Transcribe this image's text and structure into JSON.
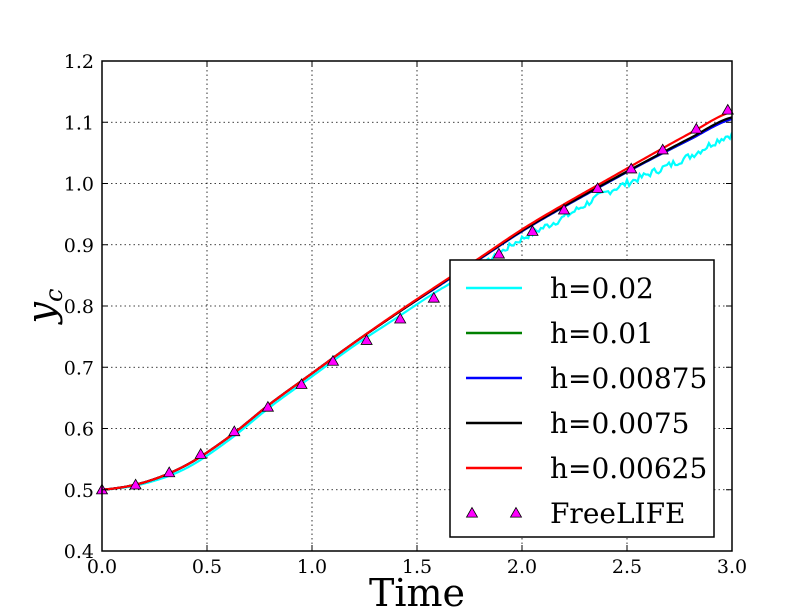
{
  "chart_data": {
    "type": "line",
    "xlabel": "Time",
    "ylabel": "y_c",
    "xlim": [
      0.0,
      3.0
    ],
    "ylim": [
      0.4,
      1.2
    ],
    "xticks": [
      "0.0",
      "0.5",
      "1.0",
      "1.5",
      "2.0",
      "2.5",
      "3.0"
    ],
    "yticks": [
      "0.4",
      "0.5",
      "0.6",
      "0.7",
      "0.8",
      "0.9",
      "1.0",
      "1.1",
      "1.2"
    ],
    "grid": true,
    "legend_position": "lower-right",
    "series": [
      {
        "name": "h=0.02",
        "color": "#00ffff",
        "style": "line",
        "noisy": true,
        "x": [
          0.0,
          0.2,
          0.4,
          0.6,
          0.8,
          1.0,
          1.2,
          1.4,
          1.6,
          1.8,
          2.0,
          2.2,
          2.4,
          2.6,
          2.8,
          3.0
        ],
        "y": [
          0.5,
          0.51,
          0.535,
          0.58,
          0.635,
          0.685,
          0.735,
          0.78,
          0.825,
          0.865,
          0.91,
          0.945,
          0.985,
          1.015,
          1.045,
          1.08
        ]
      },
      {
        "name": "h=0.01",
        "color": "#008000",
        "style": "line",
        "noisy": false,
        "x": [
          0.0,
          0.2,
          0.4,
          0.6,
          0.8,
          1.0,
          1.2,
          1.4,
          1.6,
          1.8,
          2.0,
          2.2,
          2.4,
          2.6,
          2.8,
          3.0
        ],
        "y": [
          0.5,
          0.512,
          0.54,
          0.585,
          0.64,
          0.69,
          0.74,
          0.787,
          0.832,
          0.877,
          0.922,
          0.962,
          1.0,
          1.037,
          1.072,
          1.107
        ]
      },
      {
        "name": "h=0.00875",
        "color": "#0000ff",
        "style": "line",
        "noisy": false,
        "x": [
          0.0,
          0.2,
          0.4,
          0.6,
          0.8,
          1.0,
          1.2,
          1.4,
          1.6,
          1.8,
          2.0,
          2.2,
          2.4,
          2.6,
          2.8,
          3.0
        ],
        "y": [
          0.5,
          0.512,
          0.54,
          0.585,
          0.64,
          0.69,
          0.74,
          0.787,
          0.832,
          0.877,
          0.922,
          0.962,
          1.0,
          1.037,
          1.072,
          1.105
        ]
      },
      {
        "name": "h=0.0075",
        "color": "#000000",
        "style": "line",
        "noisy": false,
        "x": [
          0.0,
          0.2,
          0.4,
          0.6,
          0.8,
          1.0,
          1.2,
          1.4,
          1.6,
          1.8,
          2.0,
          2.2,
          2.4,
          2.6,
          2.8,
          3.0
        ],
        "y": [
          0.5,
          0.512,
          0.54,
          0.585,
          0.64,
          0.69,
          0.74,
          0.787,
          0.833,
          0.878,
          0.923,
          0.963,
          1.001,
          1.038,
          1.074,
          1.108
        ]
      },
      {
        "name": "h=0.00625",
        "color": "#ff0000",
        "style": "line",
        "noisy": false,
        "x": [
          0.0,
          0.2,
          0.4,
          0.6,
          0.8,
          1.0,
          1.2,
          1.4,
          1.6,
          1.8,
          2.0,
          2.2,
          2.4,
          2.6,
          2.8,
          3.0
        ],
        "y": [
          0.5,
          0.512,
          0.54,
          0.585,
          0.64,
          0.69,
          0.74,
          0.788,
          0.834,
          0.879,
          0.925,
          0.966,
          1.005,
          1.044,
          1.082,
          1.117
        ]
      },
      {
        "name": "FreeLIFE",
        "color": "#ff00ff",
        "style": "marker",
        "marker": "triangle",
        "x": [
          0.0,
          0.16,
          0.32,
          0.47,
          0.63,
          0.79,
          0.95,
          1.1,
          1.26,
          1.42,
          1.58,
          1.73,
          1.89,
          2.05,
          2.2,
          2.36,
          2.52,
          2.67,
          2.83,
          2.98
        ],
        "y": [
          0.5,
          0.508,
          0.528,
          0.558,
          0.595,
          0.635,
          0.672,
          0.71,
          0.744,
          0.779,
          0.813,
          0.848,
          0.885,
          0.922,
          0.957,
          0.992,
          1.024,
          1.055,
          1.089,
          1.12
        ]
      }
    ]
  }
}
